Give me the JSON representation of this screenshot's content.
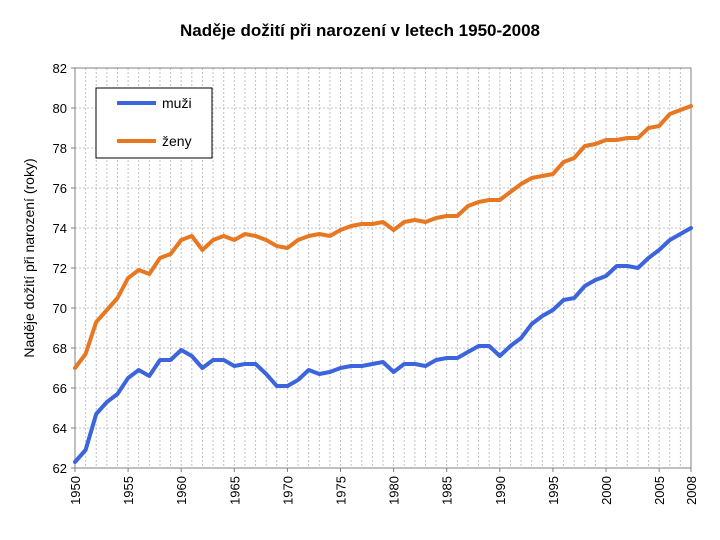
{
  "chart_data": {
    "type": "line",
    "title": "Naděje dožití při narození v letech 1950-2008",
    "xlabel": "",
    "ylabel": "Naděje dožití při narození (roky)",
    "xlim": [
      1950,
      2008
    ],
    "ylim": [
      62,
      82
    ],
    "y_ticks": [
      62,
      64,
      66,
      68,
      70,
      72,
      74,
      76,
      78,
      80,
      82
    ],
    "x_tick_labels": [
      "1950",
      "1955",
      "1960",
      "1965",
      "1970",
      "1975",
      "1980",
      "1985",
      "1990",
      "1995",
      "2000",
      "2005",
      "2008"
    ],
    "x_tick_values": [
      1950,
      1955,
      1960,
      1965,
      1970,
      1975,
      1980,
      1985,
      1990,
      1995,
      2000,
      2005,
      2008
    ],
    "grid": true,
    "legend_position": "top-left",
    "x": [
      1950,
      1951,
      1952,
      1953,
      1954,
      1955,
      1956,
      1957,
      1958,
      1959,
      1960,
      1961,
      1962,
      1963,
      1964,
      1965,
      1966,
      1967,
      1968,
      1969,
      1970,
      1971,
      1972,
      1973,
      1974,
      1975,
      1976,
      1977,
      1978,
      1979,
      1980,
      1981,
      1982,
      1983,
      1984,
      1985,
      1986,
      1987,
      1988,
      1989,
      1990,
      1991,
      1992,
      1993,
      1994,
      1995,
      1996,
      1997,
      1998,
      1999,
      2000,
      2001,
      2002,
      2003,
      2004,
      2005,
      2006,
      2007,
      2008
    ],
    "series": [
      {
        "name": "muži",
        "color": "#3c64dc",
        "values": [
          62.3,
          62.9,
          64.7,
          65.3,
          65.7,
          66.5,
          66.9,
          66.6,
          67.4,
          67.4,
          67.9,
          67.6,
          67.0,
          67.4,
          67.4,
          67.1,
          67.2,
          67.2,
          66.7,
          66.1,
          66.1,
          66.4,
          66.9,
          66.7,
          66.8,
          67.0,
          67.1,
          67.1,
          67.2,
          67.3,
          66.8,
          67.2,
          67.2,
          67.1,
          67.4,
          67.5,
          67.5,
          67.8,
          68.1,
          68.1,
          67.6,
          68.1,
          68.5,
          69.2,
          69.6,
          69.9,
          70.4,
          70.5,
          71.1,
          71.4,
          71.6,
          72.1,
          72.1,
          72.0,
          72.5,
          72.9,
          73.4,
          73.7,
          74.0
        ]
      },
      {
        "name": "ženy",
        "color": "#e87722",
        "values": [
          67.0,
          67.7,
          69.3,
          69.9,
          70.5,
          71.5,
          71.9,
          71.7,
          72.5,
          72.7,
          73.4,
          73.6,
          72.9,
          73.4,
          73.6,
          73.4,
          73.7,
          73.6,
          73.4,
          73.1,
          73.0,
          73.4,
          73.6,
          73.7,
          73.6,
          73.9,
          74.1,
          74.2,
          74.2,
          74.3,
          73.9,
          74.3,
          74.4,
          74.3,
          74.5,
          74.6,
          74.6,
          75.1,
          75.3,
          75.4,
          75.4,
          75.8,
          76.2,
          76.5,
          76.6,
          76.7,
          77.3,
          77.5,
          78.1,
          78.2,
          78.4,
          78.4,
          78.5,
          78.5,
          79.0,
          79.1,
          79.7,
          79.9,
          80.1
        ]
      }
    ]
  }
}
